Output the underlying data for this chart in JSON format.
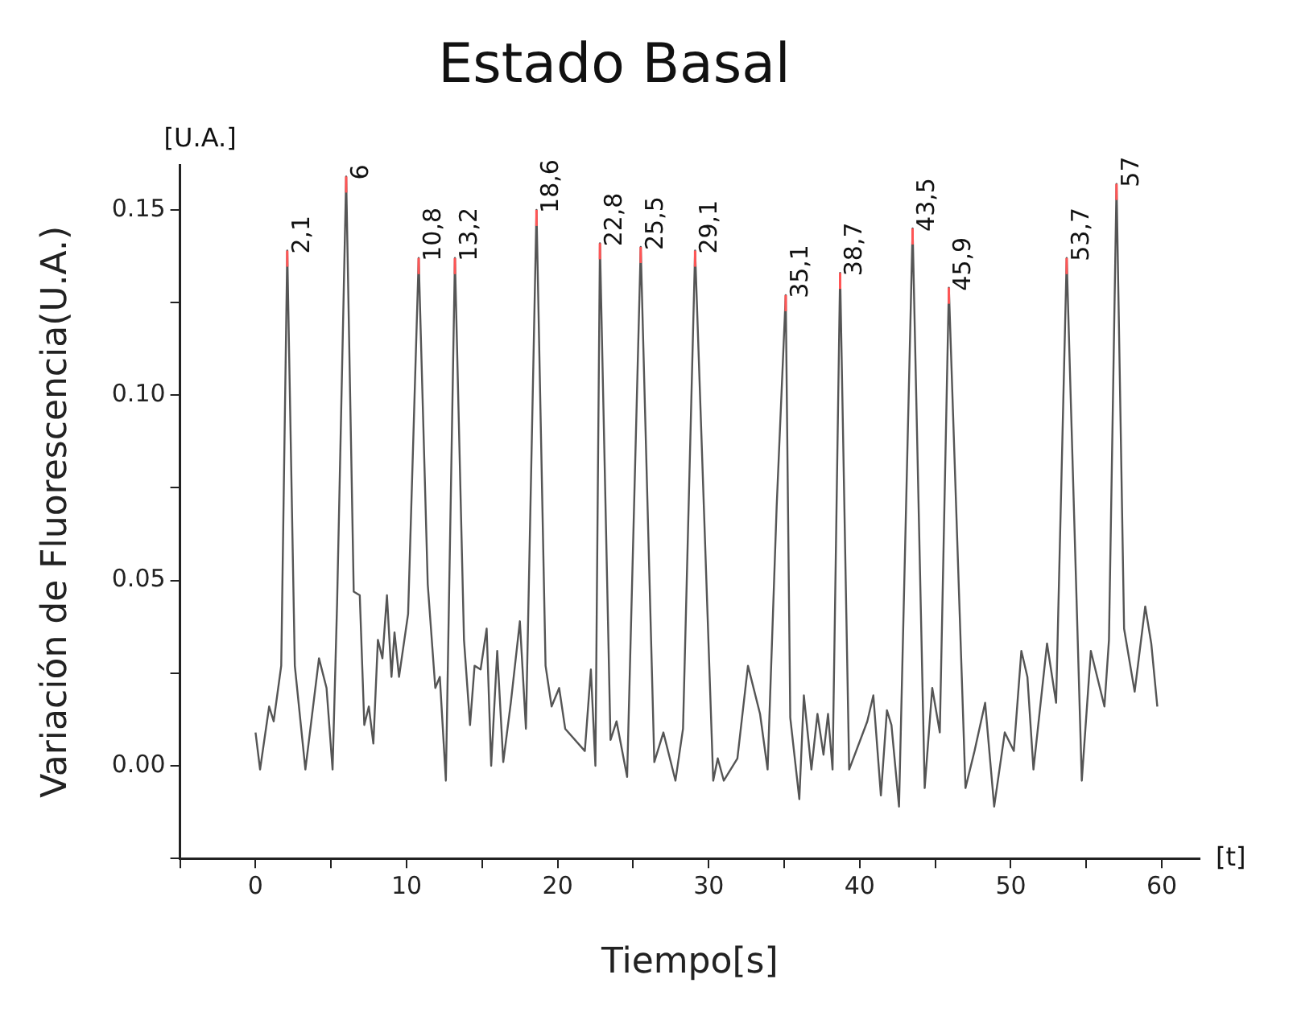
{
  "chart_data": {
    "type": "line",
    "title": "Estado Basal",
    "xlabel": "Tiempo[s]",
    "ylabel": "Variación de Fluorescencia(U.A.)",
    "annotations": [
      "[U.A.]",
      "[t]",
      {
        "text": "2,1",
        "x": 2.1,
        "y": 0.139
      },
      {
        "text": "6",
        "x": 6,
        "y": 0.159
      },
      {
        "text": "10,8",
        "x": 10.8,
        "y": 0.137
      },
      {
        "text": "13,2",
        "x": 13.2,
        "y": 0.137
      },
      {
        "text": "18,6",
        "x": 18.6,
        "y": 0.15
      },
      {
        "text": "22,8",
        "x": 22.8,
        "y": 0.141
      },
      {
        "text": "25,5",
        "x": 25.5,
        "y": 0.14
      },
      {
        "text": "29,1",
        "x": 29.1,
        "y": 0.139
      },
      {
        "text": "35,1",
        "x": 35.1,
        "y": 0.127
      },
      {
        "text": "38,7",
        "x": 38.7,
        "y": 0.133
      },
      {
        "text": "43,5",
        "x": 43.5,
        "y": 0.145
      },
      {
        "text": "45,9",
        "x": 45.9,
        "y": 0.129
      },
      {
        "text": "53,7",
        "x": 53.7,
        "y": 0.137
      },
      {
        "text": "57",
        "x": 57,
        "y": 0.157
      }
    ],
    "x": [
      0,
      0.3,
      0.9,
      1.2,
      1.7,
      2.1,
      2.6,
      3.3,
      4.2,
      4.7,
      5.1,
      5.4,
      6.0,
      6.5,
      6.9,
      7.2,
      7.5,
      7.8,
      8.1,
      8.4,
      8.7,
      9.0,
      9.2,
      9.5,
      10.1,
      10.8,
      11.4,
      11.9,
      12.2,
      12.6,
      13.2,
      13.8,
      14.2,
      14.5,
      14.9,
      15.3,
      15.6,
      16.0,
      16.4,
      16.9,
      17.5,
      17.9,
      18.6,
      19.2,
      19.6,
      20.1,
      20.5,
      21.8,
      22.2,
      22.5,
      22.8,
      23.5,
      23.9,
      24.6,
      25.5,
      26.4,
      27.0,
      27.8,
      28.3,
      29.1,
      30.3,
      30.6,
      31.0,
      31.9,
      32.6,
      33.4,
      33.9,
      34.5,
      35.1,
      35.4,
      36.0,
      36.3,
      36.8,
      37.2,
      37.6,
      37.9,
      38.2,
      38.7,
      39.3,
      40.5,
      40.9,
      41.4,
      41.8,
      42.1,
      42.6,
      43.5,
      44.3,
      44.8,
      45.3,
      45.9,
      47.0,
      47.6,
      48.3,
      48.9,
      49.6,
      50.2,
      50.7,
      51.1,
      51.5,
      52.4,
      53.0,
      53.7,
      54.7,
      55.3,
      56.2,
      56.5,
      57.0,
      57.5,
      58.2,
      58.9,
      59.3,
      59.7
    ],
    "series": [
      {
        "color": "#555555",
        "values": [
          0.009,
          -0.001,
          0.016,
          0.012,
          0.027,
          0.139,
          0.027,
          -0.001,
          0.029,
          0.021,
          -0.001,
          0.044,
          0.159,
          0.047,
          0.046,
          0.011,
          0.016,
          0.006,
          0.034,
          0.029,
          0.046,
          0.024,
          0.036,
          0.024,
          0.041,
          0.137,
          0.049,
          0.021,
          0.024,
          -0.004,
          0.137,
          0.034,
          0.011,
          0.027,
          0.026,
          0.037,
          0.0,
          0.031,
          0.001,
          0.017,
          0.039,
          0.01,
          0.15,
          0.027,
          0.016,
          0.021,
          0.01,
          0.004,
          0.026,
          0.0,
          0.141,
          0.007,
          0.012,
          -0.003,
          0.14,
          0.001,
          0.009,
          -0.004,
          0.01,
          0.139,
          -0.004,
          0.002,
          -0.004,
          0.002,
          0.027,
          0.014,
          -0.001,
          0.07,
          0.127,
          0.013,
          -0.009,
          0.019,
          -0.001,
          0.014,
          0.003,
          0.014,
          -0.001,
          0.133,
          -0.001,
          0.012,
          0.019,
          -0.008,
          0.015,
          0.011,
          -0.011,
          0.145,
          -0.006,
          0.021,
          0.009,
          0.129,
          -0.006,
          0.004,
          0.017,
          -0.011,
          0.009,
          0.004,
          0.031,
          0.024,
          -0.001,
          0.033,
          0.017,
          0.137,
          -0.004,
          0.031,
          0.016,
          0.034,
          0.157,
          0.037,
          0.02,
          0.043,
          0.033,
          0.016
        ]
      }
    ],
    "xlim": [
      -5,
      62.5
    ],
    "ylim": [
      -0.025,
      0.162
    ],
    "xticks": [
      {
        "value": -5,
        "label": null
      },
      0,
      {
        "value": 5,
        "label": null
      },
      10,
      {
        "value": 15,
        "label": null
      },
      20,
      {
        "value": 25,
        "label": null
      },
      30,
      {
        "value": 35,
        "label": null
      },
      40,
      {
        "value": 45,
        "label": null
      },
      50,
      {
        "value": 55,
        "label": null
      },
      60
    ],
    "yticks": [
      {
        "value": -0.025,
        "label": null
      },
      {
        "value": 0,
        "label": "0.00"
      },
      {
        "value": 0.025,
        "label": null
      },
      {
        "value": 0.05,
        "label": "0.05"
      },
      {
        "value": 0.075,
        "label": null
      },
      {
        "value": 0.1,
        "label": "0.10"
      },
      {
        "value": 0.125,
        "label": null
      },
      {
        "value": 0.15,
        "label": "0.15"
      }
    ],
    "grid": false,
    "legend": false,
    "marker": "none",
    "line_style": "solid"
  }
}
